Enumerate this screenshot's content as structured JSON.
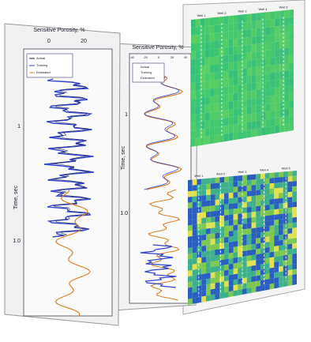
{
  "log_panels": [
    {
      "title": "Sensitive Porosity, %",
      "ticks": [
        "0",
        "20"
      ],
      "axis_label": "Time, sec",
      "time_ticks": [
        "1",
        "1.0"
      ],
      "legend": [
        "Actual",
        "Training",
        "Estimated"
      ]
    },
    {
      "title": "Sensitive Porosity, %",
      "ticks": [
        "-40",
        "-20",
        "0",
        "20",
        "40"
      ],
      "axis_label": "Time, sec",
      "time_ticks": [
        "1",
        "1.0"
      ],
      "legend": [
        "Actual",
        "Training",
        "Estimated"
      ]
    }
  ],
  "seismic_panels": [
    {
      "wells": [
        "Well 1",
        "Well 2",
        "Well 3",
        "Well 4",
        "Well 5"
      ]
    },
    {
      "wells": [
        "Well 1",
        "Well 2",
        "Well 3",
        "Well 4",
        "Well 5"
      ]
    }
  ]
}
